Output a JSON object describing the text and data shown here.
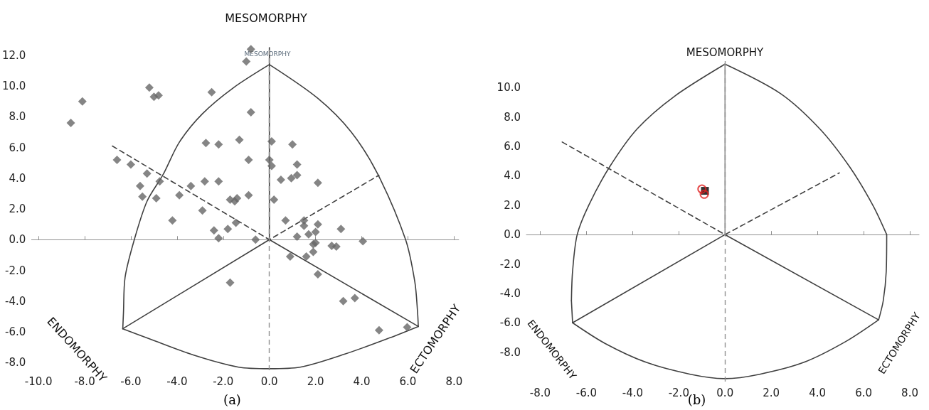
{
  "chart_data": [
    {
      "type": "scatter",
      "xlim": [
        -10.3,
        8.2
      ],
      "ylim": [
        -8.5,
        12.6
      ],
      "xticks": [
        {
          "value": -10,
          "label": "-10.0"
        },
        {
          "value": -8,
          "label": "-8.0"
        },
        {
          "value": -6,
          "label": "-6.0"
        },
        {
          "value": -4,
          "label": "-4.0"
        },
        {
          "value": -2,
          "label": "-2.0"
        },
        {
          "value": 0,
          "label": "0.0"
        },
        {
          "value": 2,
          "label": "2.0"
        },
        {
          "value": 4,
          "label": "4.0"
        },
        {
          "value": 6,
          "label": "6.0"
        },
        {
          "value": 8,
          "label": "8.0"
        }
      ],
      "yticks": [
        {
          "value": -8,
          "label": "-8.0"
        },
        {
          "value": -6,
          "label": "-6.0"
        },
        {
          "value": -4,
          "label": "-4.0"
        },
        {
          "value": -2,
          "label": "-2.0"
        },
        {
          "value": 0,
          "label": "0.0"
        },
        {
          "value": 2,
          "label": "2.0"
        },
        {
          "value": 4,
          "label": "4.0"
        },
        {
          "value": 6,
          "label": "6.0"
        },
        {
          "value": 8,
          "label": "8.0"
        },
        {
          "value": 10,
          "label": "10.0"
        },
        {
          "value": 12,
          "label": "12.0"
        }
      ],
      "grid": false,
      "ref_lines": [
        {
          "axis": "x",
          "value": 0,
          "color": "#909090",
          "line_style": "dashed"
        }
      ],
      "annotations": [
        "MESOMORPHY",
        "ENDOMORPHY",
        "ECTOMORPHY",
        "MESOMORPHY",
        "(a)"
      ],
      "series": [
        {
          "type": "line",
          "color": "#404040",
          "marker": "none",
          "line_style": "solid",
          "x": [
            -6.35,
            -6.32,
            -6.25,
            -5.85,
            -5.3,
            -4.6,
            -3.9,
            -2.9,
            -1.55,
            0
          ],
          "values": [
            -5.8,
            -4.75,
            -2.45,
            0,
            2.5,
            4.25,
            6.35,
            8.2,
            9.9,
            11.4
          ]
        },
        {
          "type": "line",
          "color": "#404040",
          "marker": "none",
          "line_style": "solid",
          "x": [
            0,
            2.1,
            3.55,
            4.7,
            5.9,
            6.3,
            6.42,
            6.45
          ],
          "values": [
            11.4,
            9.2,
            7.0,
            4.25,
            0,
            -2.75,
            -4.75,
            -5.65
          ]
        },
        {
          "type": "line",
          "color": "#404040",
          "marker": "none",
          "line_style": "solid",
          "x": [
            -6.35,
            -5.2,
            -3.3,
            -1.33,
            0,
            1.33,
            3.27,
            5.2,
            6.45
          ],
          "values": [
            -5.8,
            -6.45,
            -7.5,
            -8.3,
            -8.4,
            -8.3,
            -7.45,
            -6.4,
            -5.65
          ]
        },
        {
          "type": "line",
          "color": "#404040",
          "marker": "none",
          "line_style": "solid",
          "x": [
            -6.35,
            0,
            6.45
          ],
          "values": [
            -5.8,
            0,
            -5.65
          ]
        },
        {
          "type": "line",
          "color": "#404040",
          "marker": "none",
          "line_style": "dashed",
          "x": [
            -6.8,
            0,
            4.75
          ],
          "values": [
            6.1,
            0,
            4.2
          ]
        },
        {
          "type": "line",
          "color": "#404040",
          "marker": "none",
          "line_style": "solid",
          "x": [
            0,
            0
          ],
          "values": [
            0,
            12.5
          ]
        },
        {
          "color": "#666666",
          "marker": "diamond",
          "x": [
            -0.8,
            -1.0,
            -5.2,
            -5.0,
            -4.8,
            -8.1,
            -8.6,
            -2.5,
            -0.8,
            -2.75,
            -2.2,
            -1.3,
            -0.9,
            0.1,
            0.0,
            0.1,
            -6.6,
            -6.0,
            -5.3,
            -4.75,
            -2.8,
            -2.2,
            -5.6,
            -5.5,
            -4.9,
            -3.9,
            -3.4,
            -4.2,
            -2.9,
            -1.7,
            -1.5,
            -1.4,
            -0.9,
            -1.45,
            -1.8,
            -2.4,
            -2.2,
            -0.6,
            -1.7,
            1.0,
            1.2,
            0.5,
            0.95,
            1.2,
            2.1,
            0.2,
            0.7,
            1.5,
            1.5,
            2.1,
            2.0,
            1.2,
            1.7,
            3.1,
            2.0,
            1.9,
            2.7,
            2.9,
            4.05,
            1.9,
            1.6,
            0.9,
            2.1,
            3.7,
            3.2,
            4.75,
            5.97
          ],
          "values": [
            12.4,
            11.6,
            9.9,
            9.3,
            9.4,
            9.0,
            7.6,
            9.6,
            8.3,
            6.3,
            6.2,
            6.5,
            5.2,
            6.4,
            5.2,
            4.8,
            5.2,
            4.9,
            4.3,
            3.8,
            3.8,
            3.8,
            3.5,
            2.8,
            2.7,
            2.9,
            3.5,
            1.25,
            1.9,
            2.6,
            2.5,
            2.7,
            2.9,
            1.1,
            0.7,
            0.6,
            0.1,
            0.0,
            -2.8,
            6.2,
            4.9,
            3.9,
            4.0,
            4.2,
            3.7,
            2.6,
            1.25,
            1.25,
            0.9,
            1.0,
            0.5,
            0.2,
            0.35,
            0.7,
            -0.2,
            -0.3,
            -0.4,
            -0.45,
            -0.1,
            -0.8,
            -1.1,
            -1.1,
            -2.25,
            -3.8,
            -4.0,
            -5.9,
            -5.7
          ]
        }
      ]
    },
    {
      "type": "scatter",
      "xlim": [
        -8.6,
        8.4
      ],
      "ylim": [
        -10,
        12
      ],
      "xticks": [
        {
          "value": -8,
          "label": "-8.0"
        },
        {
          "value": -6,
          "label": "-6.0"
        },
        {
          "value": -4,
          "label": "-4.0"
        },
        {
          "value": -2,
          "label": "-2.0"
        },
        {
          "value": 0,
          "label": "0.0"
        },
        {
          "value": 2,
          "label": "2.0"
        },
        {
          "value": 4,
          "label": "4.0"
        },
        {
          "value": 6,
          "label": "6.0"
        },
        {
          "value": 8,
          "label": "8.0"
        }
      ],
      "yticks": [
        {
          "value": -8,
          "label": "-8.0"
        },
        {
          "value": -6,
          "label": "-6.0"
        },
        {
          "value": -4,
          "label": "-4.0"
        },
        {
          "value": -2,
          "label": "-2.0"
        },
        {
          "value": 0,
          "label": "0.0"
        },
        {
          "value": 2,
          "label": "2.0"
        },
        {
          "value": 4,
          "label": "4.0"
        },
        {
          "value": 6,
          "label": "6.0"
        },
        {
          "value": 8,
          "label": "8.0"
        },
        {
          "value": 10,
          "label": "10.0"
        }
      ],
      "grid": false,
      "ref_lines": [
        {
          "axis": "x",
          "value": 0,
          "color": "#909090",
          "line_style": "dashed"
        }
      ],
      "annotations": [
        "MESOMORPHY",
        "ENDOMORPHY",
        "ECTOMORPHY",
        "(b)"
      ],
      "series": [
        {
          "type": "line",
          "color": "#404040",
          "marker": "none",
          "line_style": "solid",
          "x": [
            -6.65,
            -6.6,
            -6.4,
            -5.9,
            -5.0,
            -3.8,
            -2.2,
            0
          ],
          "values": [
            -4.5,
            -2.5,
            0,
            2.0,
            4.6,
            7.2,
            9.4,
            11.6
          ]
        },
        {
          "type": "line",
          "color": "#404040",
          "marker": "none",
          "line_style": "solid",
          "x": [
            0,
            2.4,
            4.1,
            5.4,
            6.4,
            7.0
          ],
          "values": [
            11.6,
            9.6,
            7.2,
            4.6,
            2.0,
            0
          ]
        },
        {
          "type": "line",
          "color": "#404040",
          "marker": "none",
          "line_style": "solid",
          "x": [
            6.65,
            6.85,
            6.98,
            7.0
          ],
          "values": [
            -5.8,
            -4.5,
            -2.5,
            0
          ]
        },
        {
          "type": "line",
          "color": "#404040",
          "marker": "none",
          "line_style": "solid",
          "x": [
            -6.65,
            -6.6
          ],
          "values": [
            -4.5,
            -6.0
          ]
        },
        {
          "type": "line",
          "color": "#404040",
          "marker": "none",
          "line_style": "solid",
          "x": [
            -6.6,
            -5.2,
            -3.4,
            -1.5,
            0,
            1.5,
            3.4,
            5.2,
            6.65
          ],
          "values": [
            -6.0,
            -7.4,
            -8.7,
            -9.5,
            -9.8,
            -9.5,
            -8.7,
            -7.3,
            -5.8
          ]
        },
        {
          "type": "line",
          "color": "#404040",
          "marker": "none",
          "line_style": "solid",
          "x": [
            -6.6,
            0,
            6.65
          ],
          "values": [
            -6.0,
            0,
            -5.8
          ]
        },
        {
          "type": "line",
          "color": "#404040",
          "marker": "none",
          "line_style": "dashed",
          "x": [
            -7.05,
            0,
            4.95
          ],
          "values": [
            6.3,
            0,
            4.2
          ]
        },
        {
          "type": "line",
          "color": "#909090",
          "marker": "none",
          "line_style": "solid",
          "x": [
            0,
            0
          ],
          "values": [
            0,
            11.6
          ]
        },
        {
          "color": "#000000",
          "marker": "square",
          "x": [
            -0.87
          ],
          "values": [
            2.98
          ]
        },
        {
          "color": "#e02020",
          "marker": "circle",
          "x": [
            -1.0,
            -0.9
          ],
          "values": [
            3.1,
            2.75
          ]
        }
      ]
    }
  ]
}
